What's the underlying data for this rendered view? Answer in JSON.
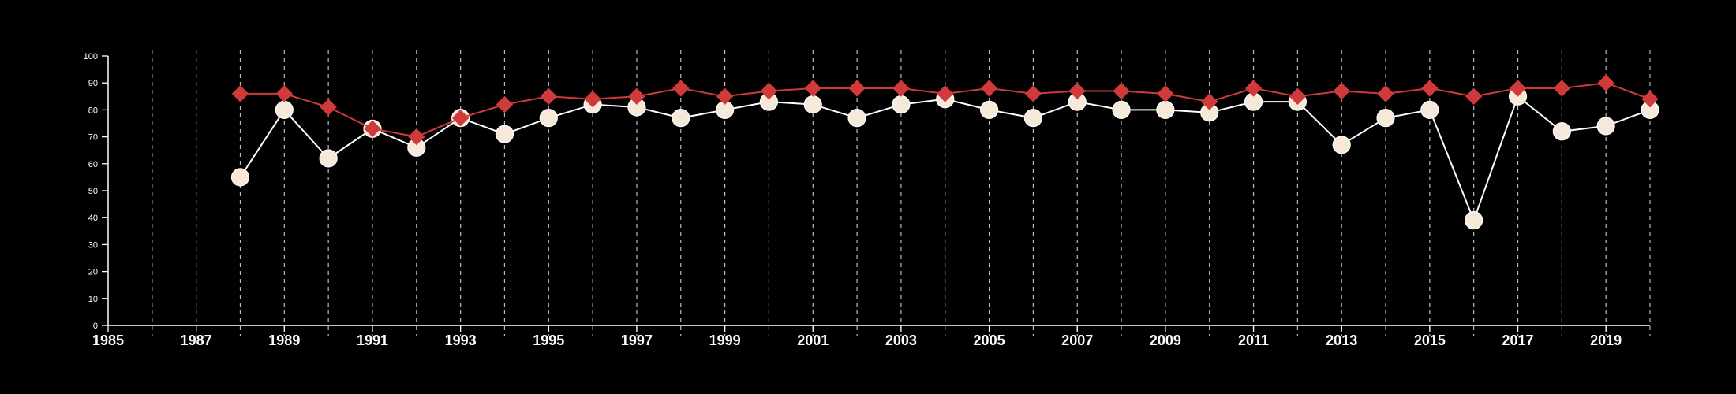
{
  "chart_data": {
    "type": "line",
    "title": "",
    "xlabel": "",
    "ylabel": "",
    "xlim": [
      1985,
      2020
    ],
    "ylim": [
      0,
      100
    ],
    "x_ticks": [
      1985,
      1987,
      1989,
      1991,
      1993,
      1995,
      1997,
      1999,
      2001,
      2003,
      2005,
      2007,
      2009,
      2011,
      2013,
      2015,
      2017,
      2019
    ],
    "x_tick_labels": [
      "1985",
      "1987",
      "1989",
      "1991",
      "1993",
      "1995",
      "1997",
      "1999",
      "2001",
      "2003",
      "2005",
      "2007",
      "2009",
      "2011",
      "2013",
      "2015",
      "2017",
      "2019"
    ],
    "y_ticks": [
      0,
      10,
      20,
      30,
      40,
      50,
      60,
      70,
      80,
      90,
      100
    ],
    "y_tick_labels": [
      "0",
      "10",
      "20",
      "30",
      "40",
      "50",
      "60",
      "70",
      "80",
      "90",
      "100"
    ],
    "vertical_grid": "dashed, one line per year",
    "legend": "none",
    "x": [
      1988,
      1989,
      1990,
      1991,
      1992,
      1993,
      1994,
      1995,
      1996,
      1997,
      1998,
      1999,
      2000,
      2001,
      2002,
      2003,
      2004,
      2005,
      2006,
      2007,
      2008,
      2009,
      2010,
      2011,
      2012,
      2013,
      2014,
      2015,
      2016,
      2017,
      2018,
      2019,
      2020
    ],
    "series": [
      {
        "color": "#d03a3a",
        "marker": "diamond",
        "values": [
          86,
          86,
          81,
          73,
          70,
          77,
          82,
          85,
          84,
          85,
          88,
          85,
          87,
          88,
          88,
          88,
          86,
          88,
          86,
          87,
          87,
          86,
          83,
          88,
          85,
          87,
          86,
          88,
          85,
          88,
          88,
          90,
          84
        ]
      },
      {
        "color": "#ffffff",
        "marker": "circle",
        "marker_fill": "#f6e9da",
        "values": [
          55,
          80,
          62,
          73,
          66,
          77,
          71,
          77,
          82,
          81,
          77,
          80,
          83,
          82,
          77,
          82,
          84,
          80,
          77,
          83,
          80,
          80,
          79,
          83,
          83,
          67,
          77,
          80,
          39,
          85,
          72,
          74,
          80
        ]
      }
    ]
  }
}
